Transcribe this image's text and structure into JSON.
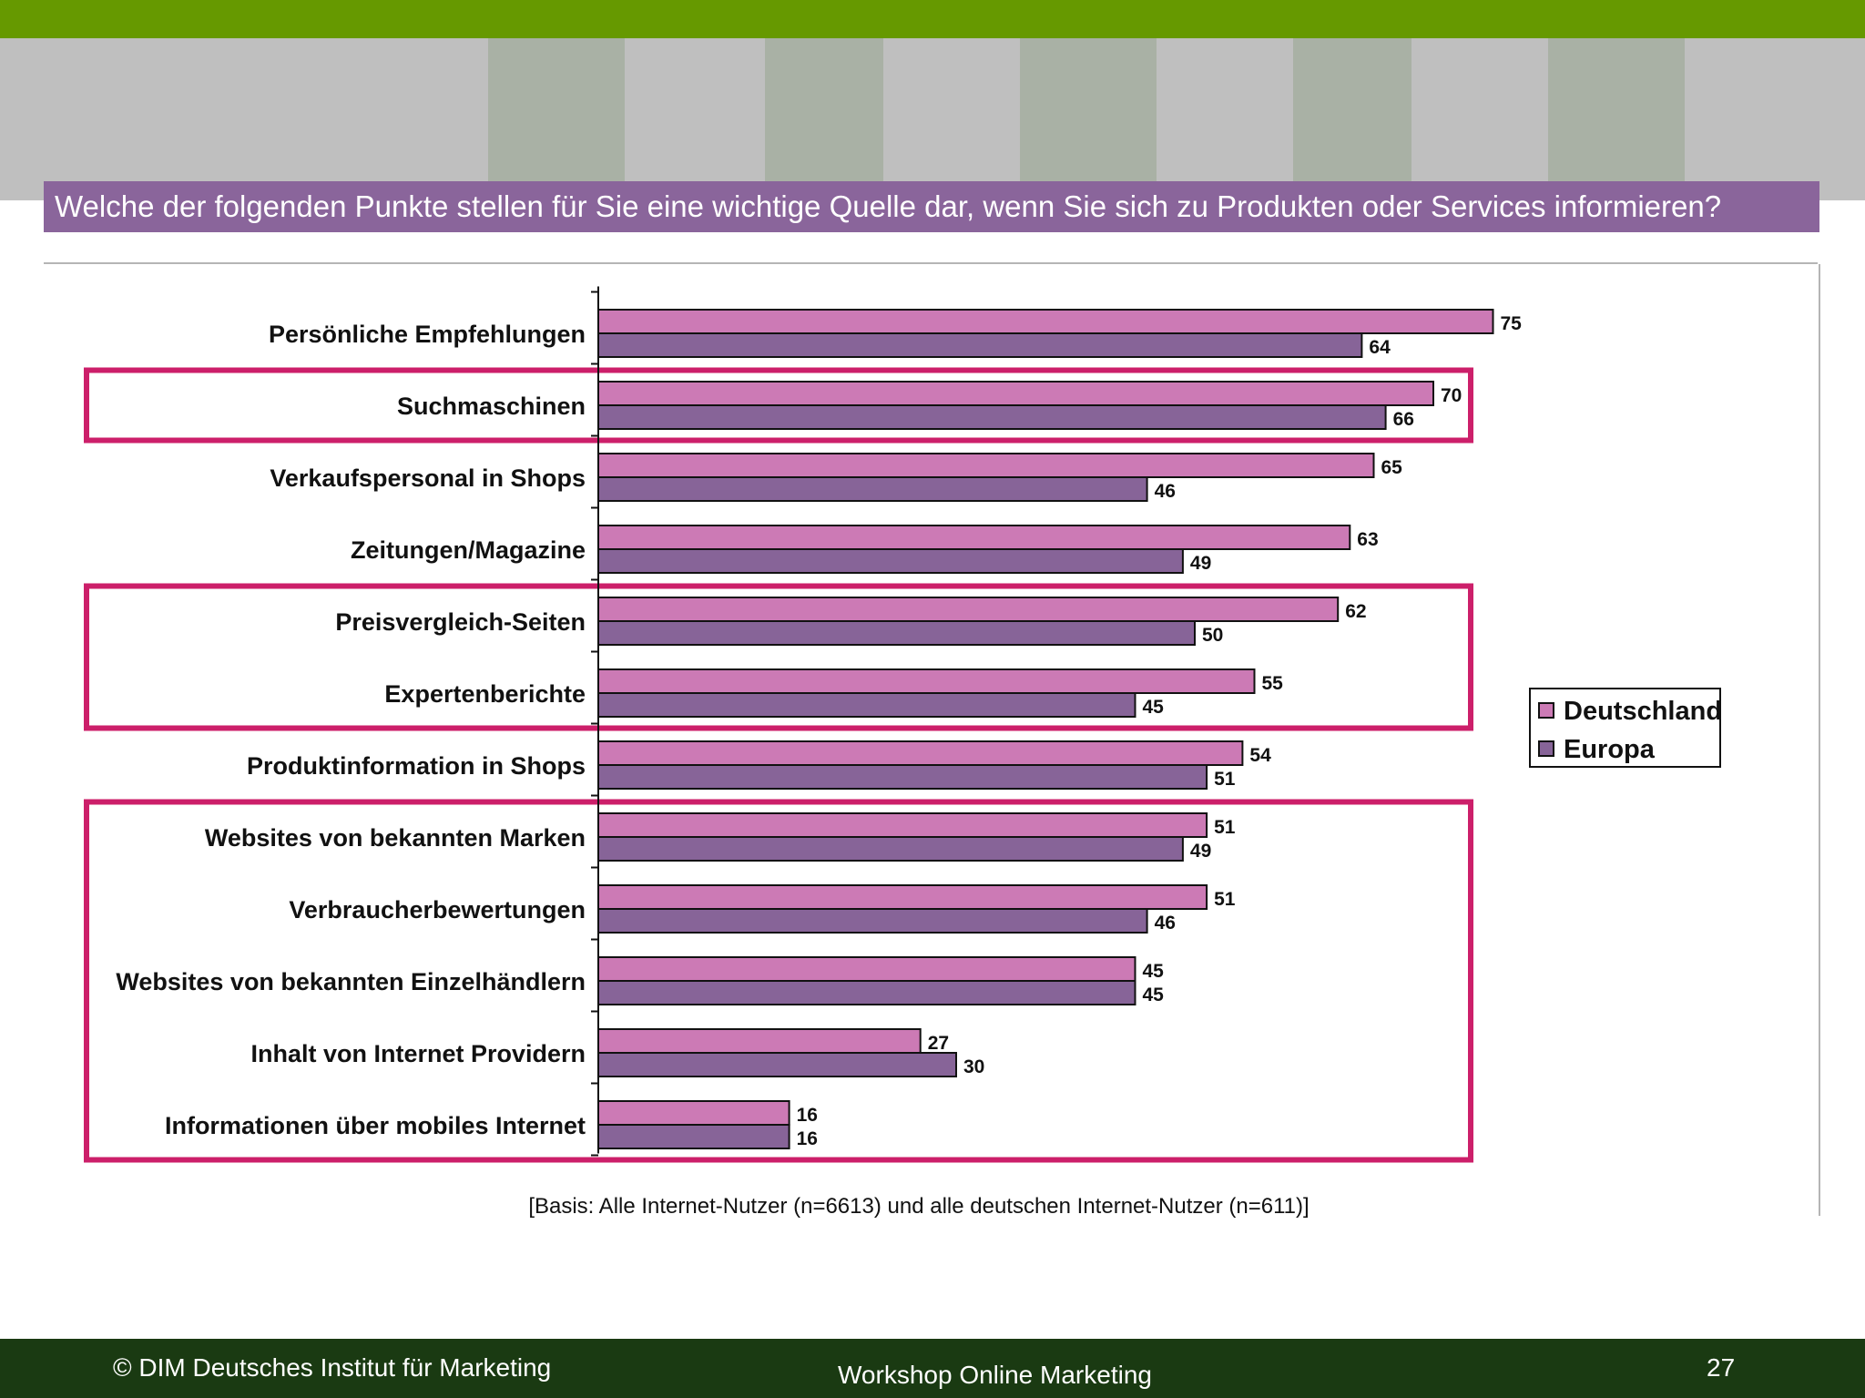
{
  "slide": {
    "title": "Welche der folgenden Punkte stellen für Sie eine wichtige Quelle dar, wenn Sie sich zu Produkten oder Services informieren?",
    "source_note": "[Basis: Alle Internet-Nutzer (n=6613) und alle deutschen Internet-Nutzer (n=611)]",
    "footer": {
      "copyright": "© DIM Deutsches Institut für Marketing",
      "workshop": "Workshop Online Marketing",
      "page_number": "27"
    }
  },
  "colors": {
    "top_bar": "#669900",
    "title_band": "#8a659b",
    "deutschland": "#cc7ab5",
    "europa": "#876498",
    "highlight_box": "#cc1f6a",
    "footer": "#1a3a12"
  },
  "chart_data": {
    "type": "bar",
    "orientation": "horizontal",
    "title": "Welche der folgenden Punkte stellen für Sie eine wichtige Quelle dar, wenn Sie sich zu Produkten oder Services informieren?",
    "xlim": [
      0,
      100
    ],
    "grid": false,
    "legend_position": "right",
    "categories": [
      "Persönliche Empfehlungen",
      "Suchmaschinen",
      "Verkaufspersonal in Shops",
      "Zeitungen/Magazine",
      "Preisvergleich-Seiten",
      "Expertenberichte",
      "Produktinformation in Shops",
      "Websites von bekannten Marken",
      "Verbraucherbewertungen",
      "Websites von bekannten Einzelhändlern",
      "Inhalt von Internet Providern",
      "Informationen über mobiles Internet"
    ],
    "series": [
      {
        "name": "Deutschland",
        "values": [
          75,
          70,
          65,
          63,
          62,
          55,
          54,
          51,
          51,
          45,
          27,
          16
        ]
      },
      {
        "name": "Europa",
        "values": [
          64,
          66,
          46,
          49,
          50,
          45,
          51,
          49,
          46,
          45,
          30,
          16
        ]
      }
    ],
    "highlight_groups": [
      {
        "from": 1,
        "to": 1
      },
      {
        "from": 4,
        "to": 5
      },
      {
        "from": 7,
        "to": 11
      }
    ],
    "source": "[Basis: Alle Internet-Nutzer (n=6613) und alle deutschen Internet-Nutzer (n=611)]"
  }
}
